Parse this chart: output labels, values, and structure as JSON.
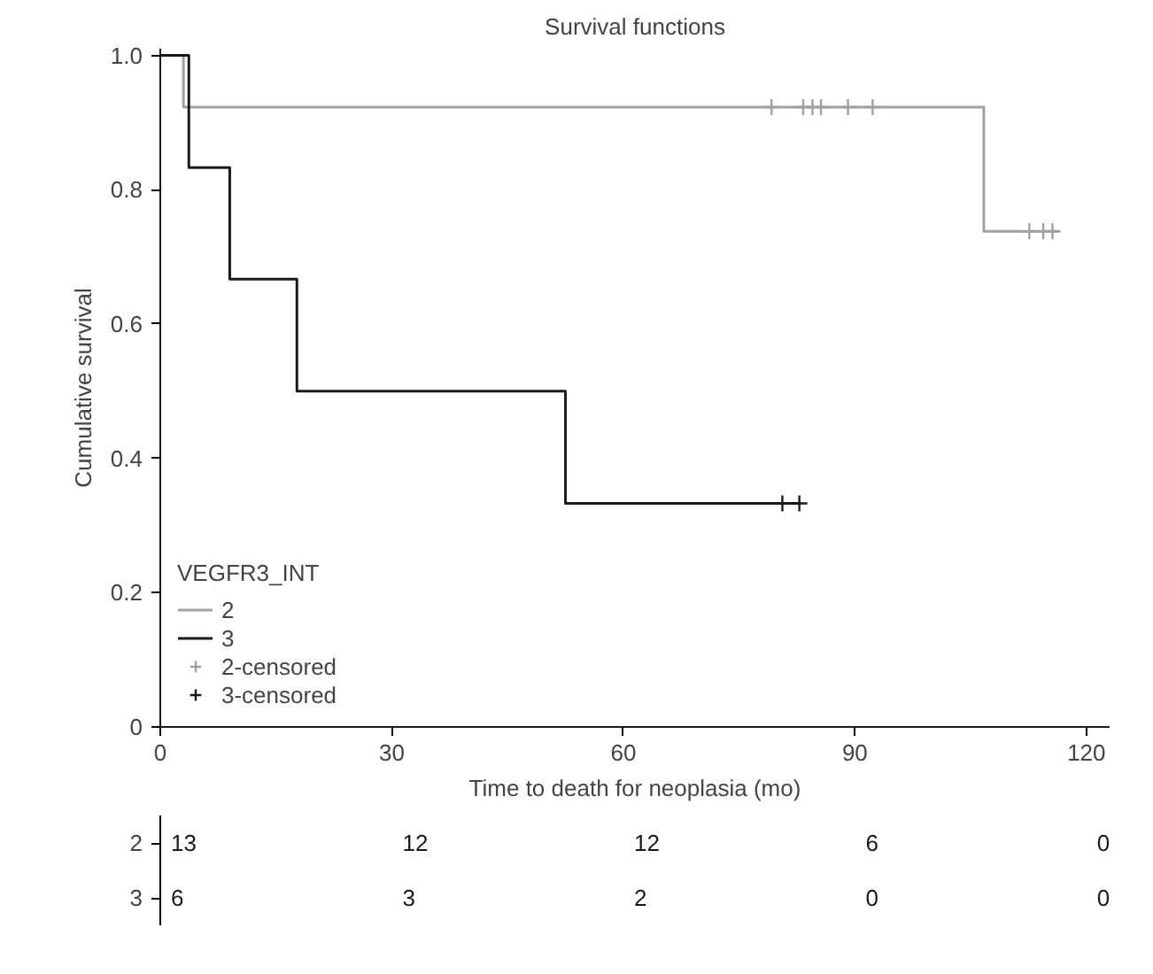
{
  "chart_data": {
    "type": "step",
    "title": "Survival functions",
    "xlabel": "Time to death for neoplasia (mo)",
    "ylabel": "Cumulative survival",
    "legend_title": "VEGFR3_INT",
    "series": [
      {
        "name": "2",
        "color": "#a0a0a0",
        "x": [
          0,
          3.0,
          106.7,
          116.5
        ],
        "values": [
          1.0,
          0.923,
          0.738,
          0.738
        ]
      },
      {
        "name": "3",
        "color": "#1a1a1a",
        "x": [
          0,
          3.7,
          9.0,
          17.7,
          52.5,
          83.0
        ],
        "values": [
          1.0,
          0.833,
          0.667,
          0.5,
          0.333,
          0.333
        ]
      },
      {
        "name": "2-censored",
        "type": "scatter",
        "marker": "cross",
        "color": "#a0a0a0",
        "x": [
          79.2,
          83.3,
          84.5,
          85.6,
          89.1,
          92.3,
          112.6,
          114.4,
          115.6
        ],
        "values": [
          0.923,
          0.923,
          0.923,
          0.923,
          0.923,
          0.923,
          0.738,
          0.738,
          0.738
        ]
      },
      {
        "name": "3-censored",
        "type": "scatter",
        "marker": "cross",
        "color": "#1a1a1a",
        "x": [
          80.6,
          82.8
        ],
        "values": [
          0.333,
          0.333
        ]
      }
    ],
    "xlim": [
      0,
      123
    ],
    "ylim": [
      0,
      1.01
    ],
    "xticks": [
      0,
      30,
      60,
      90,
      120
    ],
    "yticks": [
      0,
      0.2,
      0.4,
      0.6,
      0.8,
      {
        "value": 1.0,
        "label": "1.0"
      }
    ],
    "grid": false,
    "legend": "bottom left",
    "annotations": [
      "2",
      "13",
      "12",
      "12",
      "6",
      "0",
      "3",
      "6",
      "3",
      "2",
      "0",
      "0"
    ]
  }
}
